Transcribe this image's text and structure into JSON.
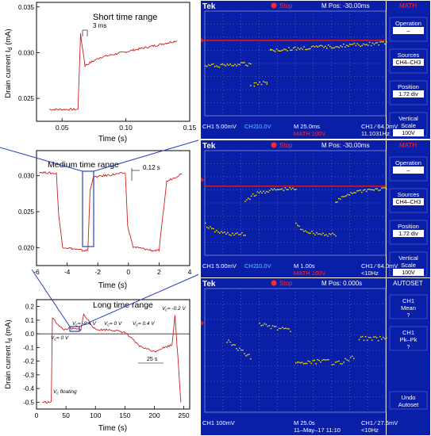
{
  "colors": {
    "trace_red": "#cc2020",
    "zoom_blue": "#2a3fbf",
    "scope_bg": "#0a1fa8",
    "scope_grid": "#7f8fd8",
    "scope_trace": "#f2e600",
    "scope_ref": "#e01818",
    "scope_menu_bg": "#0a1fa8",
    "scope_text": "#ffffff",
    "stop_red": "#ff2a2a"
  },
  "chart_data": [
    {
      "type": "line",
      "title": "Short time range",
      "xlabel": "Time (s)",
      "ylabel": "Drain current I",
      "ylabel_sub": "d",
      "ylabel_unit": " (mA)",
      "xticks": [
        "0.05",
        "0.10",
        "0.15"
      ],
      "yticks": [
        "0.025",
        "0.030",
        "0.035"
      ],
      "xlim": [
        0.03,
        0.15
      ],
      "ylim": [
        0.0225,
        0.0355
      ],
      "annotation": "3 ms",
      "series": [
        {
          "x": [
            0.04,
            0.06,
            0.0625,
            0.0645,
            0.068,
            0.08,
            0.1,
            0.12,
            0.14
          ],
          "y": [
            0.0238,
            0.0238,
            0.0238,
            0.032,
            0.0286,
            0.0295,
            0.0301,
            0.0307,
            0.0313
          ]
        }
      ]
    },
    {
      "type": "line",
      "title": "Medium time range",
      "xlabel": "Time (s)",
      "xticks": [
        "-6",
        "-4",
        "-2",
        "0",
        "2",
        "4"
      ],
      "yticks": [
        "0.020",
        "0.025",
        "0.030"
      ],
      "xlim": [
        -6,
        4
      ],
      "ylim": [
        0.0175,
        0.0335
      ],
      "annotation": "0.12 s",
      "series": [
        {
          "x": [
            -5.8,
            -4.7,
            -4.55,
            -4.3,
            -3.0,
            -2.65,
            -2.5,
            -2.3,
            -0.2,
            -0.05,
            0.3,
            1.6,
            2.0,
            2.5,
            3.5
          ],
          "y": [
            0.0305,
            0.0303,
            0.0245,
            0.0201,
            0.0196,
            0.0196,
            0.028,
            0.0298,
            0.0304,
            0.023,
            0.0201,
            0.0196,
            0.0196,
            0.0292,
            0.0303
          ]
        }
      ]
    },
    {
      "type": "line",
      "title": "Long time range",
      "xlabel": "Time (s)",
      "ylabel": "Drain current I",
      "ylabel_sub": "d",
      "ylabel_unit": " (mA)",
      "xticks": [
        "0",
        "50",
        "100",
        "150",
        "200",
        "250"
      ],
      "yticks": [
        "-0.5",
        "-0.4",
        "-0.3",
        "-0.2",
        "-0.1",
        "0.0",
        "0.1",
        "0.2"
      ],
      "xlim": [
        0,
        260
      ],
      "ylim": [
        -0.55,
        0.25
      ],
      "annotations": [
        {
          "prefix": "V",
          "sub": "c",
          "value": "= 0 V"
        },
        {
          "prefix": "V",
          "sub": "c",
          "value": "= -0.4 V"
        },
        {
          "prefix": "V",
          "sub": "c",
          "value": "= 0 V"
        },
        {
          "prefix": "V",
          "sub": "c",
          "value": "= 0.4 V"
        },
        {
          "prefix": "V",
          "sub": "c",
          "value": "= -0.2 V"
        },
        {
          "prefix": "V",
          "sub": "c",
          "value": " floating"
        },
        {
          "prefix": "",
          "sub": "",
          "value": "25 s"
        }
      ],
      "series": [
        {
          "x": [
            10,
            25,
            27,
            30,
            45,
            55,
            75,
            80,
            100,
            125,
            150,
            175,
            200,
            210,
            230,
            235,
            245
          ],
          "y": [
            -0.5,
            -0.5,
            0.12,
            0.1,
            0.03,
            0.04,
            0.03,
            0.14,
            0.03,
            0.03,
            0.01,
            -0.09,
            -0.13,
            -0.11,
            -0.08,
            0.14,
            -0.5
          ]
        }
      ]
    }
  ],
  "scope": {
    "brand": "Tek",
    "panels": [
      {
        "run_state": "Stop",
        "mpos": "M Pos: -30.00ms",
        "mode": "MATH",
        "menu": [
          {
            "label": "Operation",
            "value": "–"
          },
          {
            "label": "Sources",
            "value": "CH4–CH3"
          },
          {
            "label": "Position",
            "value": "1.72 div"
          },
          {
            "label": "Vertical Scale",
            "value": "100V"
          }
        ],
        "status": {
          "ch1": "CH1",
          "ch1v": "5.00mV",
          "ch2": "CH2",
          "ch2v": "10.0V",
          "m": "M 25.0ms",
          "math": "MATH 100V",
          "trig": "CH1 ⁄ 64.0mV",
          "freq": "11.1031Hz"
        }
      },
      {
        "run_state": "Stop",
        "mpos": "M Pos: -30.00ms",
        "mode": "MATH",
        "menu": [
          {
            "label": "Operation",
            "value": "–"
          },
          {
            "label": "Sources",
            "value": "CH4–CH3"
          },
          {
            "label": "Position",
            "value": "1.72 div"
          },
          {
            "label": "Vertical Scale",
            "value": "100V"
          }
        ],
        "status": {
          "ch1": "CH1",
          "ch1v": "5.00mV",
          "ch2": "CH2",
          "ch2v": "10.0V",
          "m": "M 1.00s",
          "math": "MATH 100V",
          "trig": "CH1 ⁄ 64.0mV",
          "freq": "<10Hz"
        }
      },
      {
        "run_state": "Stop",
        "mpos": "M Pos: 0.000s",
        "mode": "AUTOSET",
        "menu": [
          {
            "label": "CH1 Mean",
            "value": "?"
          },
          {
            "label": "CH1 Pk–Pk",
            "value": "?"
          },
          {
            "label": "Undo Autoset",
            "value": ""
          }
        ],
        "status": {
          "ch1": "CH1",
          "ch1v": "100mV",
          "ch2": "",
          "ch2v": "",
          "m": "M 25.0s",
          "math": "11–May–17 11:10",
          "trig": "CH1 ⁄ 27.6mV",
          "freq": "<10Hz"
        }
      }
    ]
  }
}
